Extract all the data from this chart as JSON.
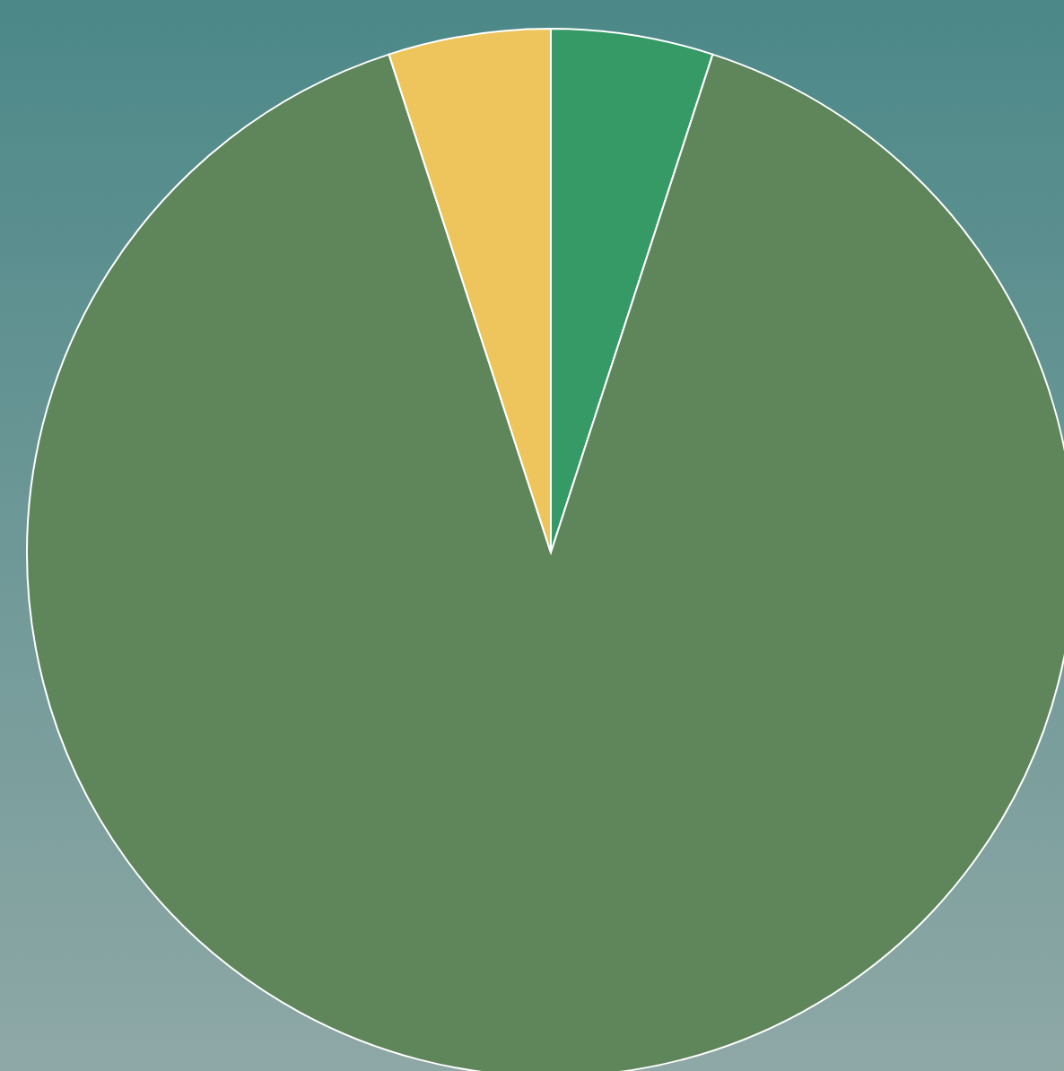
{
  "chart_data": {
    "type": "pie",
    "categories": [
      null,
      null,
      null
    ],
    "values": [
      5,
      90,
      5
    ],
    "colors": [
      "#359a65",
      "#5f865b",
      "#edc55c"
    ],
    "legend": false
  }
}
